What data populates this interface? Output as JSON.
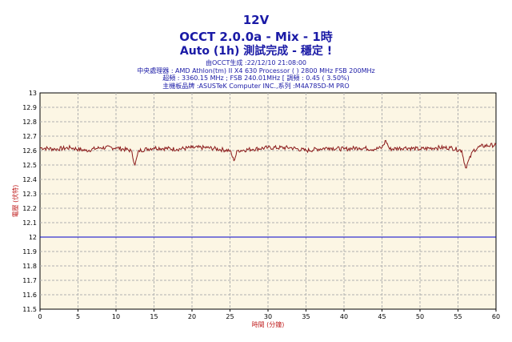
{
  "header": {
    "line1": "12V",
    "line2": "OCCT 2.0.0a - Mix - 1時",
    "line3": "Auto (1h) 測試完成 - 穩定 !"
  },
  "info": {
    "generated": "由OCCT生成 :22/12/10 21:08:00",
    "cpu": "中央處理器 : AMD Athlon(tm) II X4 630 Processor (  ) 2800 MHz FSB 200MHz",
    "clock": "超頻 : 3360.15 MHz ; FSB 240.01MHz [ 調頻 : 0.45 ( 3.50%)",
    "board": "主機板品牌 :ASUSTeK Computer INC.,系列 :M4A785D-M PRO"
  },
  "chart_data": {
    "type": "line",
    "xlabel": "時間 (分鐘)",
    "ylabel": "電壓 (伏特)",
    "xlim": [
      0,
      60
    ],
    "ylim": [
      11.5,
      13
    ],
    "x_ticks": [
      "0",
      "5",
      "10",
      "15",
      "20",
      "25",
      "30",
      "35",
      "40",
      "45",
      "50",
      "55",
      "60"
    ],
    "y_ticks": [
      "11.5",
      "11.6",
      "11.7",
      "11.8",
      "11.9",
      "12",
      "12.1",
      "12.2",
      "12.3",
      "12.4",
      "12.5",
      "12.6",
      "12.7",
      "12.8",
      "12.9",
      "13"
    ],
    "grid": true,
    "reference_line": {
      "y": 12.0,
      "color": "#0000cc"
    },
    "series": [
      {
        "color": "#8b1a1a",
        "x": [
          0,
          2,
          4,
          6,
          8,
          10,
          12,
          12.5,
          13,
          15,
          18,
          20,
          22,
          25,
          25.5,
          26,
          28,
          30,
          33,
          35,
          38,
          40,
          42,
          44,
          45,
          45.5,
          46,
          48,
          50,
          52,
          54,
          55.5,
          56,
          57,
          58,
          60
        ],
        "y": [
          12.62,
          12.61,
          12.62,
          12.6,
          12.62,
          12.62,
          12.6,
          12.5,
          12.6,
          12.62,
          12.61,
          12.62,
          12.62,
          12.6,
          12.53,
          12.6,
          12.61,
          12.62,
          12.62,
          12.6,
          12.62,
          12.61,
          12.62,
          12.61,
          12.62,
          12.67,
          12.61,
          12.62,
          12.61,
          12.62,
          12.62,
          12.6,
          12.48,
          12.6,
          12.63,
          12.64
        ]
      }
    ],
    "colors": {
      "plot_bg": "#fcf6e4",
      "grid": "#b0b0b0",
      "series": "#8b1a1a",
      "reference": "#0000cc"
    }
  }
}
